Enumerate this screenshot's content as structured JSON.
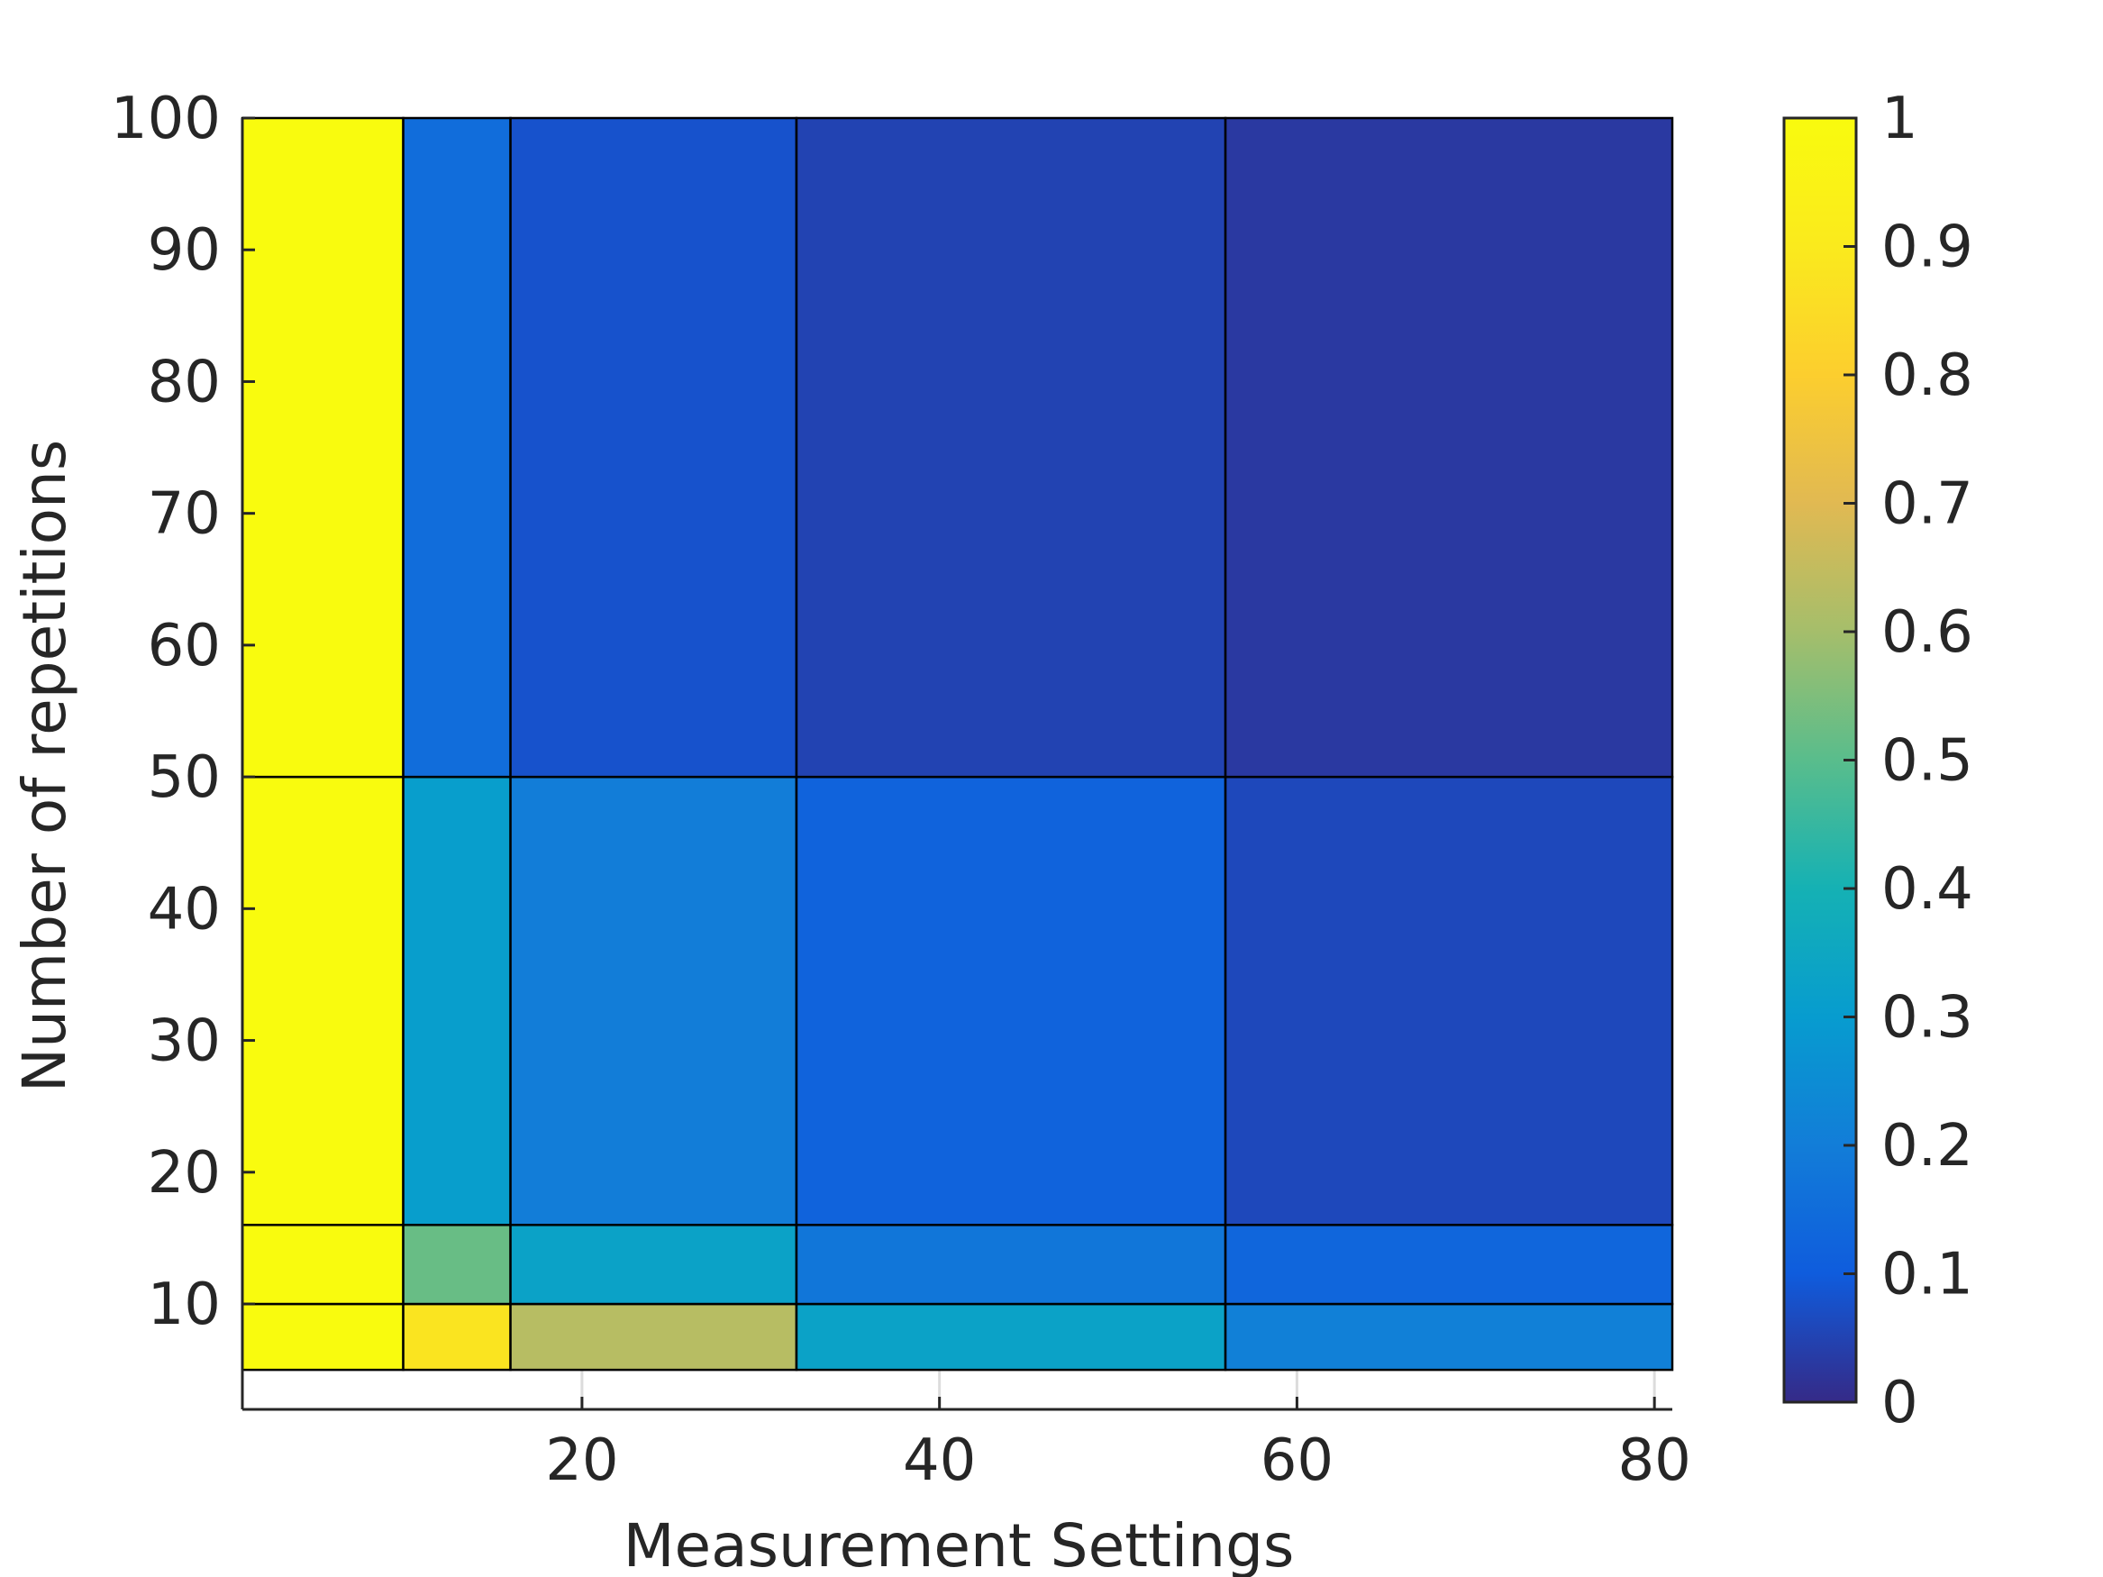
{
  "chart_data": {
    "type": "heatmap",
    "title": "",
    "xlabel": "Measurement Settings",
    "ylabel": "Number of repetitions",
    "xlim": [
      1,
      81
    ],
    "ylim": [
      5,
      100
    ],
    "axis_xlim": [
      1,
      81
    ],
    "axis_ylim": [
      2,
      100
    ],
    "x_ticks": [
      "20",
      "40",
      "60",
      "80"
    ],
    "y_ticks": [
      "10",
      "20",
      "30",
      "40",
      "50",
      "60",
      "70",
      "80",
      "90",
      "100"
    ],
    "x_edges": [
      1,
      10,
      16,
      32,
      56,
      81
    ],
    "y_edges": [
      5,
      10,
      16,
      50,
      100
    ],
    "values": [
      [
        1.0,
        0.88,
        0.63,
        0.33,
        0.21
      ],
      [
        1.0,
        0.52,
        0.33,
        0.18,
        0.13
      ],
      [
        1.0,
        0.31,
        0.2,
        0.12,
        0.06
      ],
      [
        1.0,
        0.15,
        0.08,
        0.05,
        0.03
      ]
    ],
    "colormap": "parula",
    "colorbar": {
      "range": [
        0,
        1
      ],
      "ticks": [
        "0",
        "0.1",
        "0.2",
        "0.3",
        "0.4",
        "0.5",
        "0.6",
        "0.7",
        "0.8",
        "0.9",
        "1"
      ],
      "position": "right"
    },
    "grid": false
  }
}
